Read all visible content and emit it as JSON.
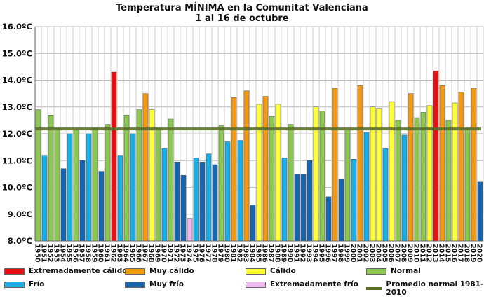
{
  "chart_data": {
    "type": "bar",
    "title": "Temperatura MÍNIMA en la Comunitat Valenciana",
    "subtitle": "1 al 16 de octubre",
    "xlabel": "",
    "ylabel": "",
    "ylim": [
      8,
      16
    ],
    "yticks": [
      "8.0ºC",
      "9.0ºC",
      "10.0ºC",
      "11.0ºC",
      "12.0ºC",
      "13.0ºC",
      "14.0ºC",
      "15.0ºC",
      "16.0ºC"
    ],
    "grid": true,
    "categories": [
      "1950",
      "1951",
      "1952",
      "1953",
      "1954",
      "1955",
      "1956",
      "1957",
      "1958",
      "1959",
      "1960",
      "1961",
      "1962",
      "1963",
      "1964",
      "1965",
      "1966",
      "1967",
      "1968",
      "1969",
      "1970",
      "1971",
      "1972",
      "1973",
      "1974",
      "1975",
      "1976",
      "1977",
      "1978",
      "1979",
      "1980",
      "1981",
      "1982",
      "1983",
      "1984",
      "1985",
      "1986",
      "1987",
      "1988",
      "1989",
      "1990",
      "1991",
      "1992",
      "1993",
      "1994",
      "1995",
      "1996",
      "1997",
      "1998",
      "1999",
      "2000",
      "2001",
      "2002",
      "2003",
      "2004",
      "2005",
      "2006",
      "2007",
      "2008",
      "2009",
      "2010",
      "2011",
      "2012",
      "2013",
      "2014",
      "2015",
      "2016",
      "2017",
      "2018",
      "2019",
      "2020"
    ],
    "values": [
      12.9,
      11.2,
      12.7,
      12.2,
      10.7,
      12.0,
      12.15,
      11.0,
      12.0,
      12.2,
      10.6,
      12.35,
      14.3,
      11.2,
      12.7,
      12.0,
      12.9,
      13.5,
      12.9,
      12.2,
      11.45,
      12.55,
      10.95,
      10.45,
      8.85,
      11.1,
      10.95,
      11.25,
      10.85,
      12.3,
      11.7,
      13.35,
      11.75,
      13.6,
      9.35,
      13.1,
      13.4,
      12.65,
      13.1,
      11.1,
      12.35,
      10.5,
      10.5,
      11.0,
      13.0,
      12.85,
      9.65,
      13.7,
      10.3,
      12.15,
      11.05,
      13.8,
      12.05,
      13.0,
      12.95,
      11.45,
      13.2,
      12.5,
      11.95,
      13.5,
      12.6,
      12.8,
      13.05,
      14.35,
      13.8,
      12.5,
      13.15,
      13.55,
      12.2,
      13.7,
      10.2
    ],
    "classes": [
      "N",
      "F",
      "N",
      "N",
      "MF",
      "F",
      "N",
      "MF",
      "F",
      "N",
      "MF",
      "N",
      "EC",
      "F",
      "N",
      "F",
      "N",
      "MC",
      "C",
      "N",
      "F",
      "N",
      "MF",
      "MF",
      "EF",
      "F",
      "MF",
      "F",
      "MF",
      "N",
      "F",
      "MC",
      "F",
      "MC",
      "MF",
      "C",
      "MC",
      "N",
      "C",
      "F",
      "N",
      "MF",
      "MF",
      "MF",
      "C",
      "N",
      "MF",
      "MC",
      "MF",
      "N",
      "F",
      "MC",
      "F",
      "C",
      "C",
      "F",
      "C",
      "N",
      "F",
      "MC",
      "N",
      "N",
      "C",
      "EC",
      "MC",
      "N",
      "C",
      "MC",
      "N",
      "MC",
      "MF"
    ],
    "normal_value": 12.18,
    "legend_placement": "bottom",
    "legend": [
      {
        "key": "EC",
        "label": "Extremadamente cálido",
        "color": "#e81010"
      },
      {
        "key": "MC",
        "label": "Muy cálido",
        "color": "#f39a14"
      },
      {
        "key": "C",
        "label": "Cálido",
        "color": "#ffff33"
      },
      {
        "key": "N",
        "label": "Normal",
        "color": "#8cc850"
      },
      {
        "key": "F",
        "label": "Frío",
        "color": "#1aaee6"
      },
      {
        "key": "MF",
        "label": "Muy frío",
        "color": "#1565b0"
      },
      {
        "key": "EF",
        "label": "Extremadamente frío",
        "color": "#f0b8f0"
      },
      {
        "key": "AVG",
        "label": "Promedio normal 1981-2010",
        "color": "#5a6e2a"
      }
    ]
  }
}
